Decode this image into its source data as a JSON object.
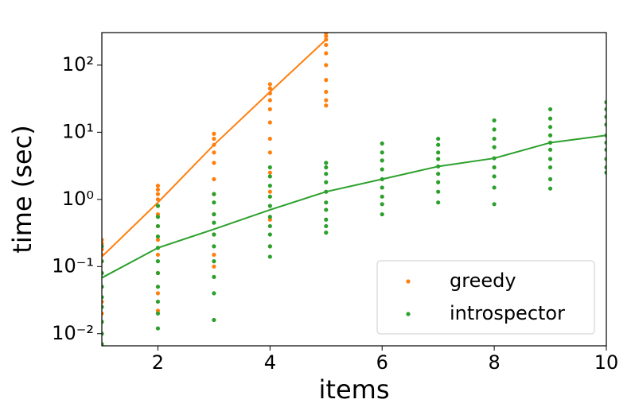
{
  "chart_data": {
    "type": "scatter",
    "x_label": "items",
    "y_label": "time (sec)",
    "xlim": [
      1,
      10
    ],
    "xticks": [
      2,
      4,
      6,
      8,
      10
    ],
    "ylim": [
      0.0066,
      305
    ],
    "log_y": true,
    "yticks": [
      {
        "value": 0.01,
        "label": "10⁻²"
      },
      {
        "value": 0.1,
        "label": "10⁻¹"
      },
      {
        "value": 1,
        "label": "10⁰"
      },
      {
        "value": 10,
        "label": "10¹"
      },
      {
        "value": 100,
        "label": "10²"
      }
    ],
    "legend": "lower right",
    "series": [
      {
        "name": "greedy",
        "color": "#ff7f0e",
        "x": [
          1,
          1,
          1,
          1,
          1,
          1,
          1,
          1,
          1,
          1,
          2,
          2,
          2,
          2,
          2,
          2,
          2,
          2,
          2,
          2,
          2,
          2,
          3,
          3,
          3,
          3,
          3,
          3,
          3,
          3,
          3,
          3,
          3,
          4,
          4,
          4,
          4,
          4,
          4,
          4,
          4,
          4,
          4,
          4,
          4,
          5,
          5,
          5,
          5,
          5,
          5,
          5,
          5,
          5,
          5
        ],
        "values": [
          0.25,
          0.22,
          0.18,
          0.15,
          0.12,
          0.08,
          0.05,
          0.03,
          0.02,
          0.015,
          1.6,
          1.4,
          1.2,
          1.0,
          0.8,
          0.6,
          0.4,
          0.25,
          0.15,
          0.08,
          0.04,
          0.022,
          9.5,
          8,
          6.5,
          5,
          3.5,
          2,
          1.2,
          0.6,
          0.3,
          0.15,
          0.1,
          52,
          45,
          38,
          30,
          22,
          14,
          8,
          5,
          2.5,
          1.3,
          0.5,
          0.2,
          300,
          270,
          240,
          200,
          150,
          100,
          60,
          40,
          30,
          25
        ],
        "mean": {
          "x": [
            1,
            2,
            3,
            4,
            5
          ],
          "values": [
            0.14,
            0.9,
            6.5,
            40,
            240
          ]
        }
      },
      {
        "name": "introspector",
        "color": "#2ca02c",
        "x": [
          1,
          1,
          1,
          1,
          1,
          1,
          1,
          1,
          1,
          2,
          2,
          2,
          2,
          2,
          2,
          2,
          2,
          2,
          2,
          2,
          3,
          3,
          3,
          3,
          3,
          3,
          3,
          3,
          3,
          3,
          4,
          4,
          4,
          4,
          4,
          4,
          4,
          4,
          4,
          4,
          5,
          5,
          5,
          5,
          5,
          5,
          5,
          5,
          5,
          5,
          6,
          6,
          6,
          6,
          6,
          6,
          6,
          6,
          6,
          7,
          7,
          7,
          7,
          7,
          7,
          7,
          7,
          7,
          8,
          8,
          8,
          8,
          8,
          8,
          8,
          8,
          8,
          9,
          9,
          9,
          9,
          9,
          9,
          9,
          9,
          9,
          9,
          10,
          10,
          10,
          10,
          10,
          10,
          10,
          10,
          10,
          10
        ],
        "values": [
          0.2,
          0.12,
          0.08,
          0.05,
          0.035,
          0.025,
          0.015,
          0.01,
          0.007,
          0.8,
          0.55,
          0.4,
          0.28,
          0.19,
          0.12,
          0.08,
          0.05,
          0.03,
          0.02,
          0.012,
          1.2,
          0.9,
          0.6,
          0.45,
          0.3,
          0.2,
          0.12,
          0.07,
          0.04,
          0.016,
          3,
          2.2,
          1.6,
          1.1,
          0.8,
          0.55,
          0.4,
          0.3,
          0.2,
          0.14,
          3.5,
          3,
          2.4,
          1.8,
          1.3,
          0.9,
          0.7,
          0.5,
          0.4,
          0.32,
          6.8,
          5,
          3.8,
          2.8,
          2,
          1.5,
          1.1,
          0.85,
          0.6,
          8,
          6.5,
          5,
          4,
          3.1,
          2.4,
          1.8,
          1.3,
          0.9,
          15,
          11,
          8,
          6,
          4.1,
          3,
          2.2,
          1.5,
          0.85,
          22,
          16,
          12,
          9,
          7,
          5.5,
          4,
          3,
          2,
          1.45,
          28,
          22,
          17,
          13,
          9,
          7,
          5.5,
          4,
          3,
          2.5
        ],
        "mean": {
          "x": [
            1,
            2,
            3,
            4,
            5,
            6,
            7,
            8,
            9,
            10
          ],
          "values": [
            0.068,
            0.19,
            0.36,
            0.7,
            1.3,
            2.0,
            3.1,
            4.1,
            7.0,
            9.0
          ]
        }
      }
    ]
  }
}
